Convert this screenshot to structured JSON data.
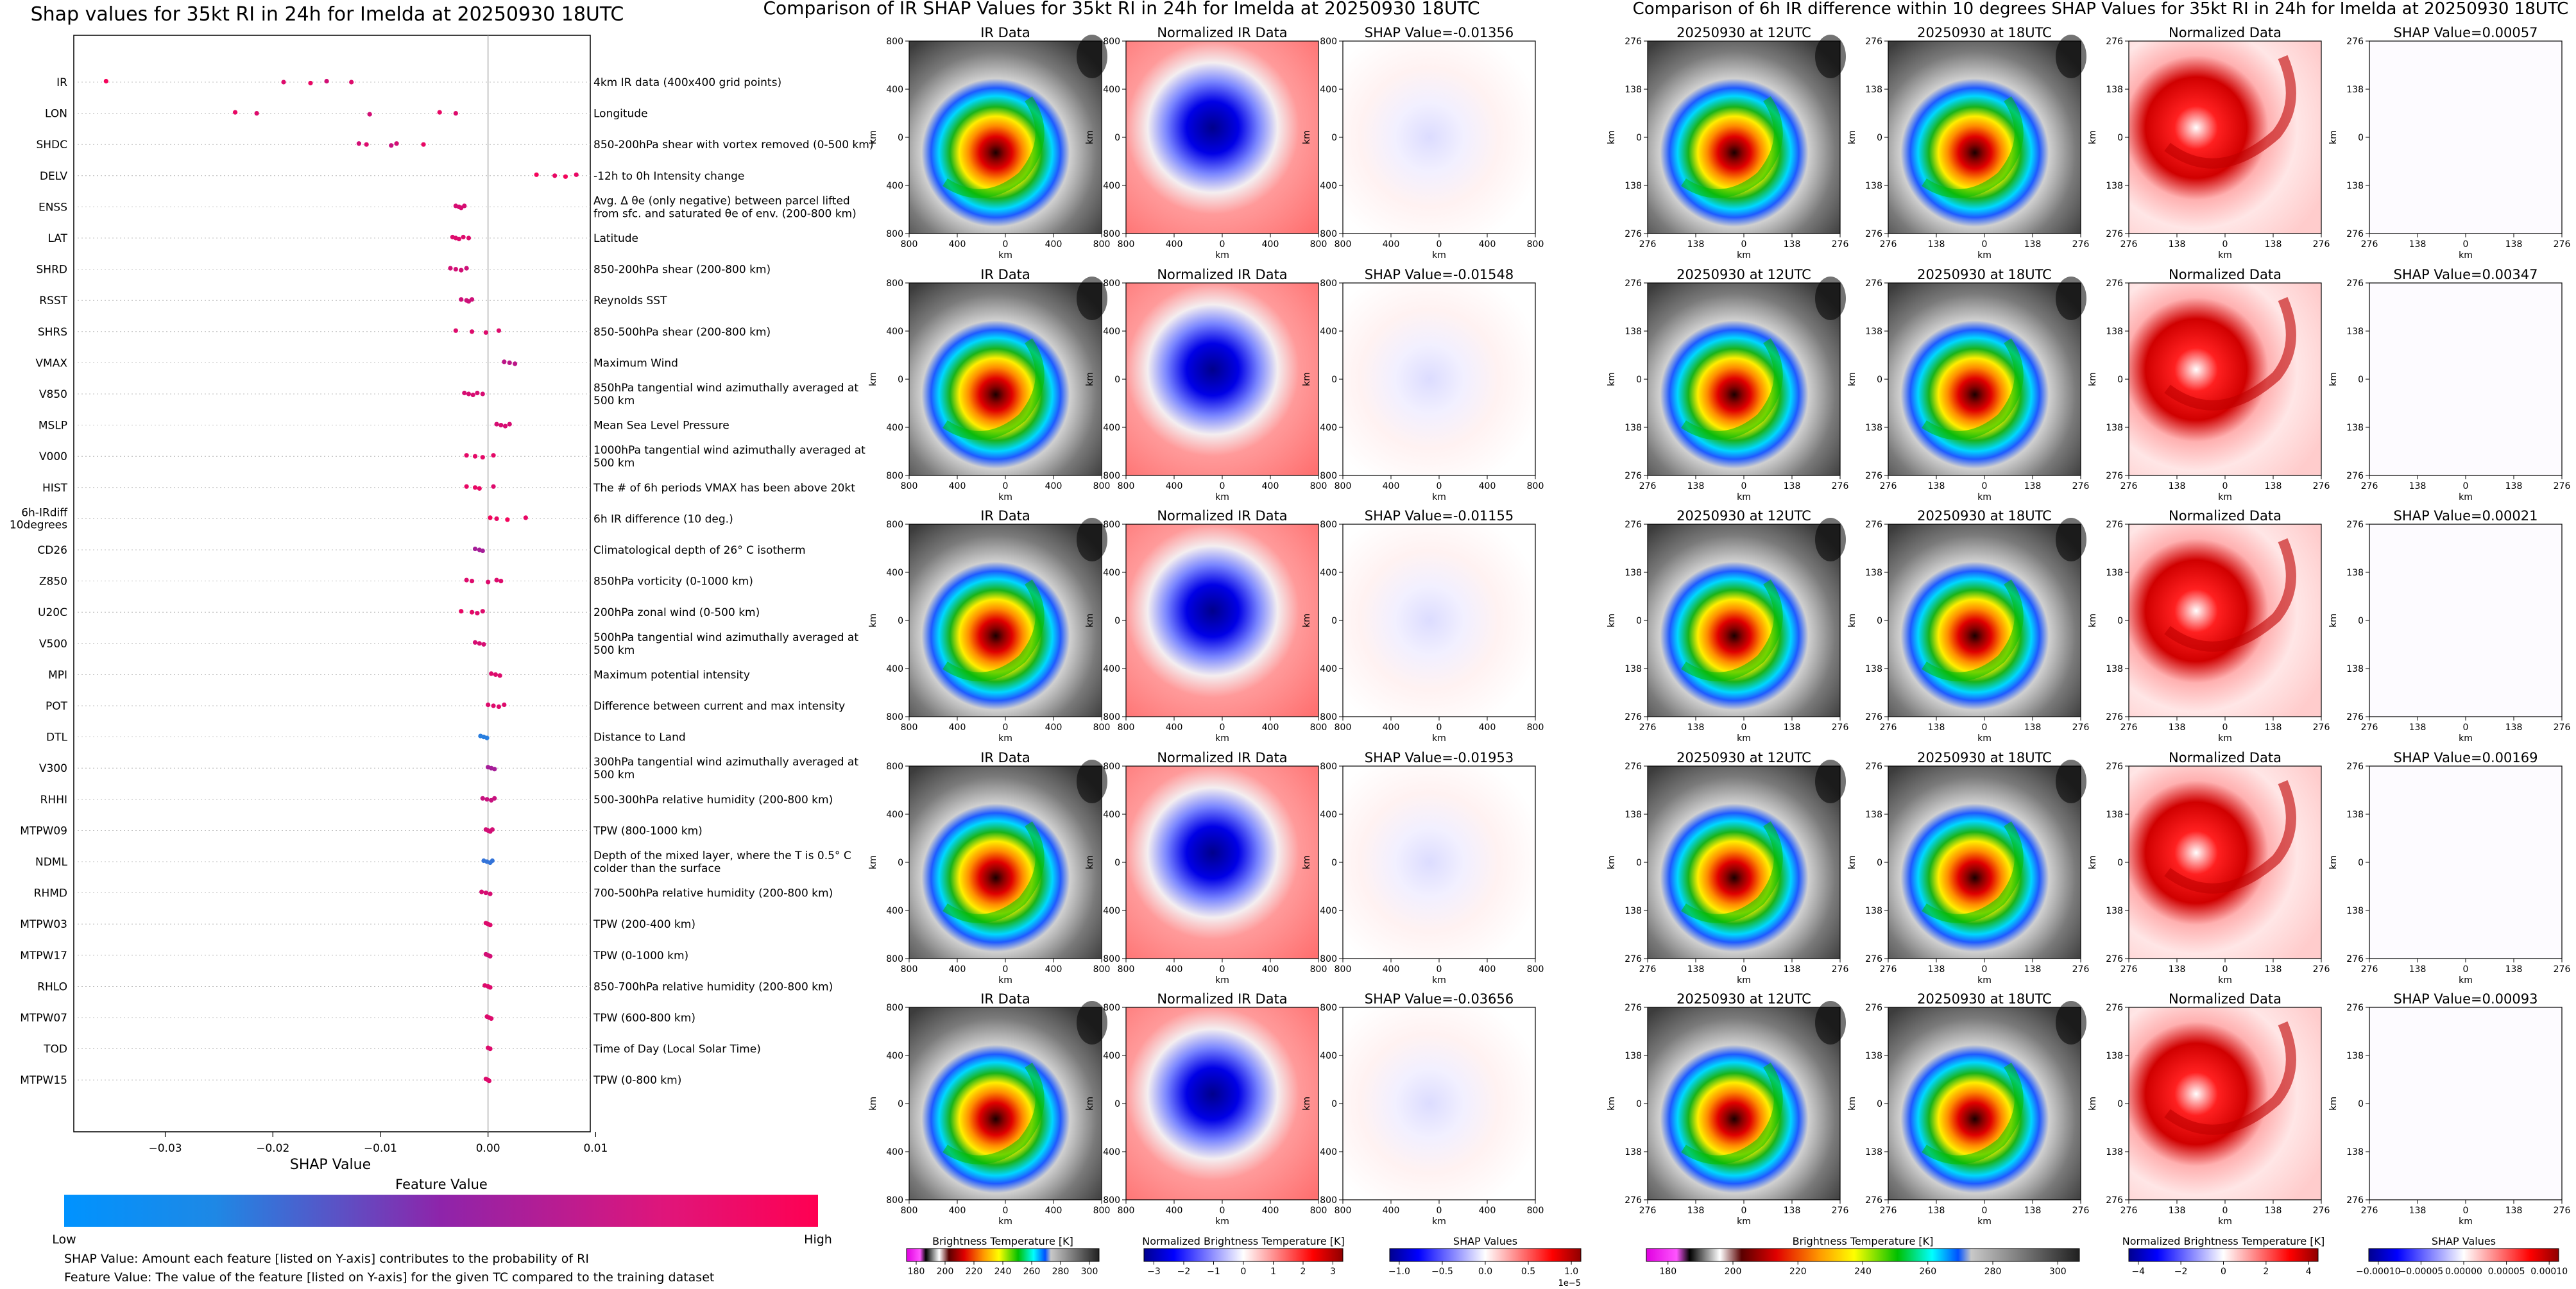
{
  "beeswarm": {
    "title": "Shap values for 35kt RI in 24h for Imelda at 20250930 18UTC",
    "xlabel": "SHAP Value",
    "xticks": [
      "−0.03",
      "−0.02",
      "−0.01",
      "0.00",
      "0.01"
    ],
    "colorbar_title": "Feature Value",
    "colorbar_low": "Low",
    "colorbar_high": "High",
    "note1": "SHAP Value: Amount each feature [listed on Y-axis] contributes to the probability of RI",
    "note2": "Feature Value: The value of the feature [listed on Y-axis] for the given TC compared to the training dataset",
    "colors": {
      "low": "#1e88e5",
      "mid": "#8e24aa",
      "high": "#ff0052"
    }
  },
  "chart_data": {
    "type": "scatter",
    "title": "Shap values for 35kt RI in 24h for Imelda at 20250930 18UTC",
    "xlabel": "SHAP Value",
    "xlim": [
      -0.0385,
      0.0095
    ],
    "features": [
      {
        "name": "IR",
        "desc": "4km IR data (400x400 grid points)",
        "points": [
          [
            -0.0355,
            0.95
          ],
          [
            -0.019,
            0.85
          ],
          [
            -0.0165,
            0.9
          ],
          [
            -0.015,
            0.8
          ],
          [
            -0.0127,
            0.85
          ]
        ]
      },
      {
        "name": "LON",
        "desc": "Longitude",
        "points": [
          [
            -0.0235,
            0.9
          ],
          [
            -0.0215,
            0.85
          ],
          [
            -0.011,
            0.8
          ],
          [
            -0.0045,
            0.9
          ],
          [
            -0.003,
            0.85
          ]
        ]
      },
      {
        "name": "SHDC",
        "desc": "850-200hPa shear with vortex removed (0-500 km)",
        "points": [
          [
            -0.012,
            0.8
          ],
          [
            -0.0113,
            0.85
          ],
          [
            -0.009,
            0.75
          ],
          [
            -0.0085,
            0.8
          ],
          [
            -0.006,
            0.9
          ]
        ]
      },
      {
        "name": "DELV",
        "desc": "-12h to 0h Intensity change",
        "points": [
          [
            0.0045,
            0.95
          ],
          [
            0.0062,
            0.9
          ],
          [
            0.0072,
            0.95
          ],
          [
            0.0082,
            0.9
          ]
        ]
      },
      {
        "name": "ENSS",
        "desc": "Avg. Δ θe (only negative) between parcel lifted from sfc. and saturated θe of env. (200-800 km)",
        "points": [
          [
            -0.003,
            0.82
          ],
          [
            -0.0027,
            0.82
          ],
          [
            -0.0025,
            0.82
          ],
          [
            -0.0022,
            0.82
          ]
        ]
      },
      {
        "name": "LAT",
        "desc": "Latitude",
        "points": [
          [
            -0.0033,
            0.85
          ],
          [
            -0.003,
            0.85
          ],
          [
            -0.0027,
            0.85
          ],
          [
            -0.0023,
            0.85
          ],
          [
            -0.0018,
            0.85
          ]
        ]
      },
      {
        "name": "SHRD",
        "desc": "850-200hPa shear (200-800 km)",
        "points": [
          [
            -0.0035,
            0.8
          ],
          [
            -0.003,
            0.8
          ],
          [
            -0.0025,
            0.8
          ],
          [
            -0.002,
            0.78
          ]
        ]
      },
      {
        "name": "RSST",
        "desc": "Reynolds SST",
        "points": [
          [
            -0.0025,
            0.78
          ],
          [
            -0.002,
            0.78
          ],
          [
            -0.0018,
            0.78
          ],
          [
            -0.0015,
            0.78
          ]
        ]
      },
      {
        "name": "SHRS",
        "desc": "850-500hPa shear (200-800 km)",
        "points": [
          [
            -0.003,
            0.85
          ],
          [
            -0.0015,
            0.85
          ],
          [
            -0.0002,
            0.85
          ],
          [
            0.001,
            0.85
          ]
        ]
      },
      {
        "name": "VMAX",
        "desc": "Maximum Wind",
        "points": [
          [
            0.0015,
            0.7
          ],
          [
            0.002,
            0.7
          ],
          [
            0.0025,
            0.7
          ]
        ]
      },
      {
        "name": "V850",
        "desc": "850hPa tangential wind azimuthally averaged at 500 km",
        "points": [
          [
            -0.0022,
            0.82
          ],
          [
            -0.0018,
            0.82
          ],
          [
            -0.0014,
            0.82
          ],
          [
            -0.001,
            0.82
          ],
          [
            -0.0005,
            0.82
          ]
        ]
      },
      {
        "name": "MSLP",
        "desc": "Mean Sea Level Pressure",
        "points": [
          [
            0.0008,
            0.82
          ],
          [
            0.0012,
            0.82
          ],
          [
            0.0016,
            0.82
          ],
          [
            0.002,
            0.82
          ]
        ]
      },
      {
        "name": "V000",
        "desc": "1000hPa tangential wind azimuthally averaged at 500 km",
        "points": [
          [
            -0.002,
            0.88
          ],
          [
            -0.0012,
            0.88
          ],
          [
            -0.0005,
            0.88
          ],
          [
            0.0005,
            0.88
          ]
        ]
      },
      {
        "name": "HIST",
        "desc": "The # of 6h periods VMAX has been above 20kt",
        "points": [
          [
            -0.002,
            0.9
          ],
          [
            -0.0012,
            0.9
          ],
          [
            -0.0008,
            0.9
          ],
          [
            0.0005,
            0.85
          ]
        ]
      },
      {
        "name": "6h-IRdiff 10degrees",
        "desc": "6h IR difference (10 deg.)",
        "points": [
          [
            0.0002,
            0.95
          ],
          [
            0.0008,
            0.9
          ],
          [
            0.0018,
            0.95
          ],
          [
            0.0035,
            0.9
          ]
        ]
      },
      {
        "name": "CD26",
        "desc": "Climatological depth of 26° C isotherm",
        "points": [
          [
            -0.0012,
            0.6
          ],
          [
            -0.0008,
            0.6
          ],
          [
            -0.0005,
            0.6
          ]
        ]
      },
      {
        "name": "Z850",
        "desc": "850hPa vorticity (0-1000 km)",
        "points": [
          [
            -0.002,
            0.85
          ],
          [
            -0.0015,
            0.85
          ],
          [
            0.0,
            0.85
          ],
          [
            0.0008,
            0.85
          ],
          [
            0.0012,
            0.85
          ]
        ]
      },
      {
        "name": "U20C",
        "desc": "200hPa zonal wind (0-500 km)",
        "points": [
          [
            -0.0025,
            0.9
          ],
          [
            -0.0015,
            0.88
          ],
          [
            -0.001,
            0.85
          ],
          [
            -0.0005,
            0.85
          ]
        ]
      },
      {
        "name": "V500",
        "desc": "500hPa tangential wind azimuthally averaged at 500 km",
        "points": [
          [
            -0.0012,
            0.82
          ],
          [
            -0.0008,
            0.82
          ],
          [
            -0.0004,
            0.82
          ]
        ]
      },
      {
        "name": "MPI",
        "desc": "Maximum potential intensity",
        "points": [
          [
            0.0003,
            0.85
          ],
          [
            0.0007,
            0.85
          ],
          [
            0.0011,
            0.85
          ]
        ]
      },
      {
        "name": "POT",
        "desc": "Difference between current and max intensity",
        "points": [
          [
            0.0,
            0.85
          ],
          [
            0.0005,
            0.85
          ],
          [
            0.001,
            0.85
          ],
          [
            0.0015,
            0.85
          ]
        ]
      },
      {
        "name": "DTL",
        "desc": "Distance to Land",
        "points": [
          [
            -0.0007,
            0.05
          ],
          [
            -0.0004,
            0.05
          ],
          [
            -0.0001,
            0.05
          ]
        ]
      },
      {
        "name": "V300",
        "desc": "300hPa tangential wind azimuthally averaged at 500 km",
        "points": [
          [
            0.0,
            0.6
          ],
          [
            0.0003,
            0.6
          ],
          [
            0.0006,
            0.6
          ]
        ]
      },
      {
        "name": "RHHI",
        "desc": "500-300hPa relative humidity (200-800 km)",
        "points": [
          [
            -0.0005,
            0.75
          ],
          [
            -0.0001,
            0.75
          ],
          [
            0.0003,
            0.75
          ],
          [
            0.0006,
            0.75
          ]
        ]
      },
      {
        "name": "MTPW09",
        "desc": "TPW (800-1000 km)",
        "points": [
          [
            -0.0002,
            0.8
          ],
          [
            0.0,
            0.8
          ],
          [
            0.0002,
            0.8
          ],
          [
            0.0004,
            0.8
          ]
        ]
      },
      {
        "name": "NDML",
        "desc": "Depth of the mixed layer, where the T is 0.5° C colder than the surface",
        "points": [
          [
            -0.0004,
            0.1
          ],
          [
            -0.0001,
            0.1
          ],
          [
            0.0002,
            0.1
          ],
          [
            0.0004,
            0.1
          ]
        ]
      },
      {
        "name": "RHMD",
        "desc": "700-500hPa relative humidity (200-800 km)",
        "points": [
          [
            -0.0006,
            0.82
          ],
          [
            -0.0002,
            0.82
          ],
          [
            0.0002,
            0.82
          ]
        ]
      },
      {
        "name": "MTPW03",
        "desc": "TPW (200-400 km)",
        "points": [
          [
            -0.0002,
            0.85
          ],
          [
            0.0,
            0.85
          ],
          [
            0.0002,
            0.85
          ]
        ]
      },
      {
        "name": "MTPW17",
        "desc": "TPW (0-1000 km)",
        "points": [
          [
            -0.0002,
            0.8
          ],
          [
            0.0,
            0.8
          ],
          [
            0.0002,
            0.8
          ]
        ]
      },
      {
        "name": "RHLO",
        "desc": "850-700hPa relative humidity (200-800 km)",
        "points": [
          [
            -0.0003,
            0.85
          ],
          [
            0.0,
            0.85
          ],
          [
            0.0002,
            0.85
          ]
        ]
      },
      {
        "name": "MTPW07",
        "desc": "TPW (600-800 km)",
        "points": [
          [
            -0.0001,
            0.85
          ],
          [
            0.0001,
            0.85
          ],
          [
            0.0003,
            0.85
          ]
        ]
      },
      {
        "name": "TOD",
        "desc": "Time of Day (Local Solar Time)",
        "points": [
          [
            0.0,
            0.85
          ],
          [
            0.0002,
            0.85
          ]
        ]
      },
      {
        "name": "MTPW15",
        "desc": "TPW (0-800 km)",
        "points": [
          [
            -0.0002,
            0.85
          ],
          [
            0.0,
            0.85
          ],
          [
            0.0001,
            0.85
          ]
        ]
      }
    ]
  },
  "ir_section": {
    "title": "Comparison of IR SHAP Values for 35kt RI in 24h for Imelda at 20250930 18UTC",
    "col_titles": [
      "IR Data",
      "Normalized IR Data"
    ],
    "shap_titles": [
      "SHAP Value=-0.01356",
      "SHAP Value=-0.01548",
      "SHAP Value=-0.01155",
      "SHAP Value=-0.01953",
      "SHAP Value=-0.03656"
    ],
    "ticks": [
      "800",
      "400",
      "0",
      "400",
      "800"
    ],
    "axis_label": "km"
  },
  "diff_section": {
    "title": "Comparison of 6h IR difference within 10 degrees SHAP Values for 35kt RI in 24h for Imelda at 20250930 18UTC",
    "col_titles": [
      "20250930 at 12UTC",
      "20250930 at 18UTC",
      "Normalized Data"
    ],
    "shap_titles": [
      "SHAP Value=0.00057",
      "SHAP Value=0.00347",
      "SHAP Value=0.00021",
      "SHAP Value=0.00169",
      "SHAP Value=0.00093"
    ],
    "ticks": [
      "276",
      "138",
      "0",
      "138",
      "276"
    ],
    "axis_label": "km"
  },
  "colorbars": [
    {
      "label": "Brightness Temperature [K]",
      "ticks": [
        "180",
        "200",
        "220",
        "240",
        "260",
        "280",
        "300"
      ],
      "offset": ""
    },
    {
      "label": "Normalized Brightness Temperature [K]",
      "ticks": [
        "−3",
        "−2",
        "−1",
        "0",
        "1",
        "2",
        "3"
      ],
      "offset": ""
    },
    {
      "label": "SHAP Values",
      "ticks": [
        "−1.0",
        "−0.5",
        "0.0",
        "0.5",
        "1.0"
      ],
      "offset": "1e−5"
    },
    {
      "label": "Brightness Temperature [K]",
      "ticks": [
        "180",
        "200",
        "220",
        "240",
        "260",
        "280",
        "300"
      ],
      "offset": ""
    },
    {
      "label": "Normalized Brightness Temperature [K]",
      "ticks": [
        "−4",
        "−2",
        "0",
        "2",
        "4"
      ],
      "offset": ""
    },
    {
      "label": "SHAP Values",
      "ticks": [
        "−0.00010",
        "−0.00005",
        "0.00000",
        "0.00005",
        "0.00010"
      ],
      "offset": ""
    }
  ]
}
